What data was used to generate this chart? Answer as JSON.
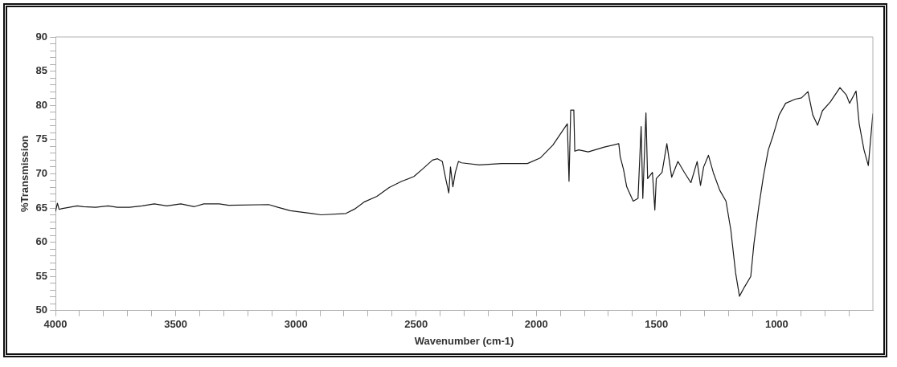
{
  "chart_data": {
    "type": "line",
    "xlabel": "Wavenumber (cm-1)",
    "ylabel": "%Transmission",
    "x": [
      4000,
      3992,
      3985,
      3975,
      3910,
      3884,
      3833,
      3781,
      3743,
      3692,
      3640,
      3589,
      3537,
      3479,
      3422,
      3383,
      3319,
      3280,
      3113,
      3075,
      3023,
      2933,
      2895,
      2792,
      2753,
      2715,
      2663,
      2612,
      2560,
      2509,
      2470,
      2432,
      2411,
      2391,
      2377,
      2364,
      2357,
      2347,
      2337,
      2324,
      2311,
      2237,
      2144,
      2037,
      1984,
      1931,
      1871,
      1864,
      1857,
      1844,
      1840,
      1824,
      1784,
      1717,
      1657,
      1651,
      1637,
      1624,
      1597,
      1577,
      1564,
      1557,
      1544,
      1537,
      1517,
      1507,
      1501,
      1477,
      1457,
      1437,
      1411,
      1384,
      1357,
      1331,
      1317,
      1304,
      1284,
      1264,
      1237,
      1211,
      1191,
      1171,
      1155,
      1135,
      1108,
      1095,
      1075,
      1055,
      1035,
      1015,
      990,
      963,
      923,
      897,
      870,
      850,
      830,
      810,
      777,
      737,
      710,
      697,
      670,
      657,
      637,
      619,
      600
    ],
    "series": [
      {
        "color": "#1a1a1a",
        "values": [
          64.5,
          65.7,
          64.8,
          64.9,
          65.3,
          65.2,
          65.1,
          65.3,
          65.1,
          65.1,
          65.3,
          65.6,
          65.3,
          65.6,
          65.2,
          65.6,
          65.6,
          65.4,
          65.5,
          65.1,
          64.6,
          64.2,
          64.0,
          64.2,
          64.9,
          65.9,
          66.7,
          68.0,
          68.9,
          69.6,
          70.8,
          72.0,
          72.2,
          71.8,
          69.3,
          67.2,
          71.0,
          68.1,
          70.2,
          71.8,
          71.6,
          71.3,
          71.5,
          71.5,
          72.3,
          74.2,
          77.3,
          68.9,
          79.3,
          79.3,
          73.3,
          73.5,
          73.2,
          73.9,
          74.4,
          72.5,
          70.6,
          68.1,
          66.0,
          66.4,
          76.9,
          66.4,
          78.9,
          69.3,
          70.2,
          64.7,
          69.3,
          70.2,
          74.4,
          69.5,
          71.8,
          70.2,
          68.7,
          71.8,
          68.3,
          71.0,
          72.7,
          70.2,
          67.6,
          66.0,
          61.8,
          55.5,
          52.1,
          53.4,
          55.0,
          59.7,
          65.1,
          69.7,
          73.5,
          75.6,
          78.6,
          80.3,
          80.9,
          81.1,
          82.0,
          78.6,
          77.1,
          79.2,
          80.5,
          82.6,
          81.5,
          80.3,
          82.1,
          77.3,
          73.5,
          71.2,
          78.8
        ]
      }
    ],
    "xlim": [
      4000,
      600
    ],
    "xticks": [
      4000,
      {
        "value": 3900,
        "label": null
      },
      {
        "value": 3800,
        "label": null
      },
      {
        "value": 3700,
        "label": null
      },
      {
        "value": 3600,
        "label": null
      },
      3500,
      {
        "value": 3400,
        "label": null
      },
      {
        "value": 3300,
        "label": null
      },
      {
        "value": 3200,
        "label": null
      },
      {
        "value": 3100,
        "label": null
      },
      3000,
      {
        "value": 2900,
        "label": null
      },
      {
        "value": 2800,
        "label": null
      },
      {
        "value": 2700,
        "label": null
      },
      {
        "value": 2600,
        "label": null
      },
      2500,
      {
        "value": 2400,
        "label": null
      },
      {
        "value": 2300,
        "label": null
      },
      {
        "value": 2200,
        "label": null
      },
      {
        "value": 2100,
        "label": null
      },
      2000,
      {
        "value": 1900,
        "label": null
      },
      {
        "value": 1800,
        "label": null
      },
      {
        "value": 1700,
        "label": null
      },
      {
        "value": 1600,
        "label": null
      },
      1500,
      {
        "value": 1400,
        "label": null
      },
      {
        "value": 1300,
        "label": null
      },
      {
        "value": 1200,
        "label": null
      },
      {
        "value": 1100,
        "label": null
      },
      1000,
      {
        "value": 900,
        "label": null
      },
      {
        "value": 800,
        "label": null
      },
      {
        "value": 700,
        "label": null
      }
    ],
    "ylim": [
      50,
      90
    ],
    "yticks": [
      50,
      {
        "value": 51,
        "label": null
      },
      {
        "value": 52,
        "label": null
      },
      {
        "value": 53,
        "label": null
      },
      {
        "value": 54,
        "label": null
      },
      55,
      {
        "value": 56,
        "label": null
      },
      {
        "value": 57,
        "label": null
      },
      {
        "value": 58,
        "label": null
      },
      {
        "value": 59,
        "label": null
      },
      60,
      {
        "value": 61,
        "label": null
      },
      {
        "value": 62,
        "label": null
      },
      {
        "value": 63,
        "label": null
      },
      {
        "value": 64,
        "label": null
      },
      65,
      {
        "value": 66,
        "label": null
      },
      {
        "value": 67,
        "label": null
      },
      {
        "value": 68,
        "label": null
      },
      {
        "value": 69,
        "label": null
      },
      70,
      {
        "value": 71,
        "label": null
      },
      {
        "value": 72,
        "label": null
      },
      {
        "value": 73,
        "label": null
      },
      {
        "value": 74,
        "label": null
      },
      75,
      {
        "value": 76,
        "label": null
      },
      {
        "value": 77,
        "label": null
      },
      {
        "value": 78,
        "label": null
      },
      {
        "value": 79,
        "label": null
      },
      80,
      {
        "value": 81,
        "label": null
      },
      {
        "value": 82,
        "label": null
      },
      {
        "value": 83,
        "label": null
      },
      {
        "value": 84,
        "label": null
      },
      85,
      {
        "value": 86,
        "label": null
      },
      {
        "value": 87,
        "label": null
      },
      {
        "value": 88,
        "label": null
      },
      {
        "value": 89,
        "label": null
      },
      90
    ],
    "marker": "none"
  }
}
